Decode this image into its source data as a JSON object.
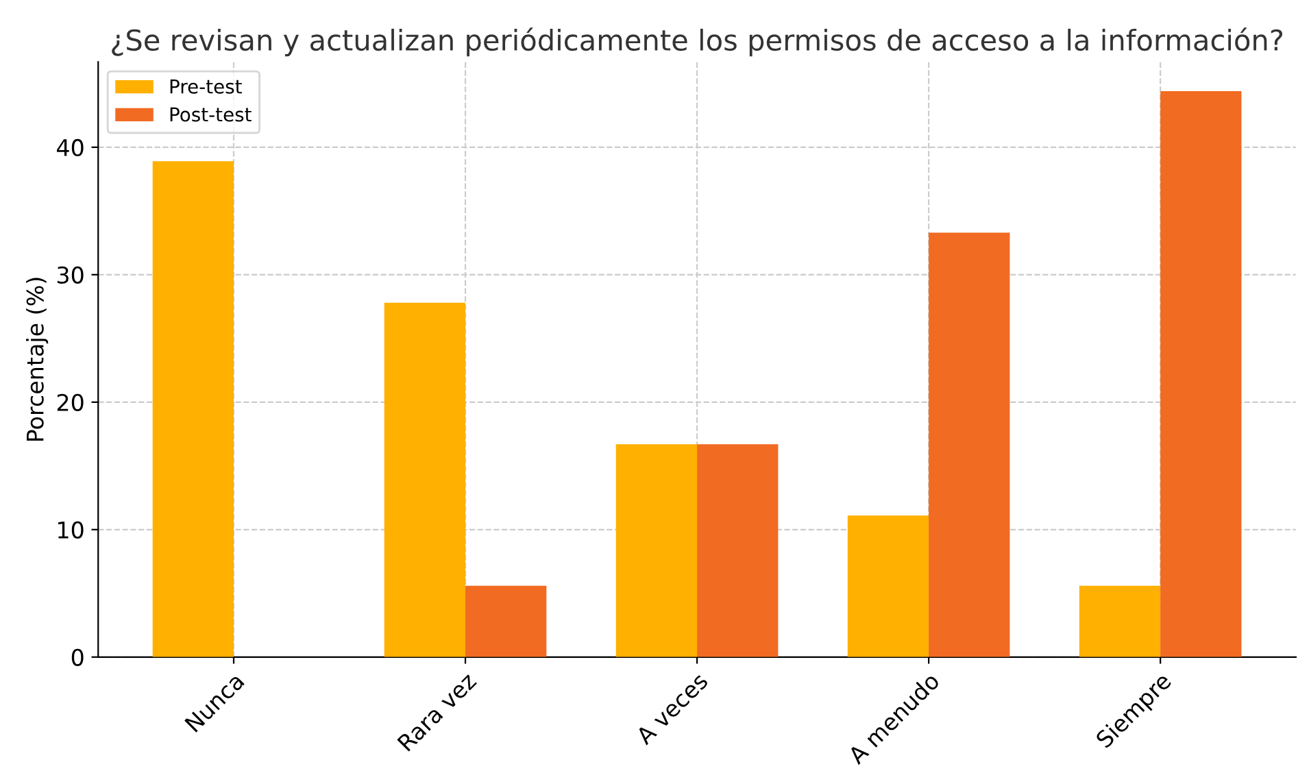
{
  "chart_data": {
    "type": "bar",
    "title": "¿Se revisan y actualizan periódicamente los permisos de acceso a la información?",
    "ylabel": "Porcentaje (%)",
    "categories": [
      "Nunca",
      "Rara vez",
      "A veces",
      "A menudo",
      "Siempre"
    ],
    "series": [
      {
        "name": "Pre-test",
        "color": "#ffb000",
        "values": [
          38.9,
          27.8,
          16.7,
          11.1,
          5.6
        ]
      },
      {
        "name": "Post-test",
        "color": "#f26b22",
        "values": [
          0,
          5.6,
          16.7,
          33.3,
          44.4
        ]
      }
    ],
    "ylim": [
      0,
      46.7
    ],
    "yticks": [
      0,
      10,
      20,
      30,
      40
    ],
    "grid": true,
    "legend": "top left"
  }
}
